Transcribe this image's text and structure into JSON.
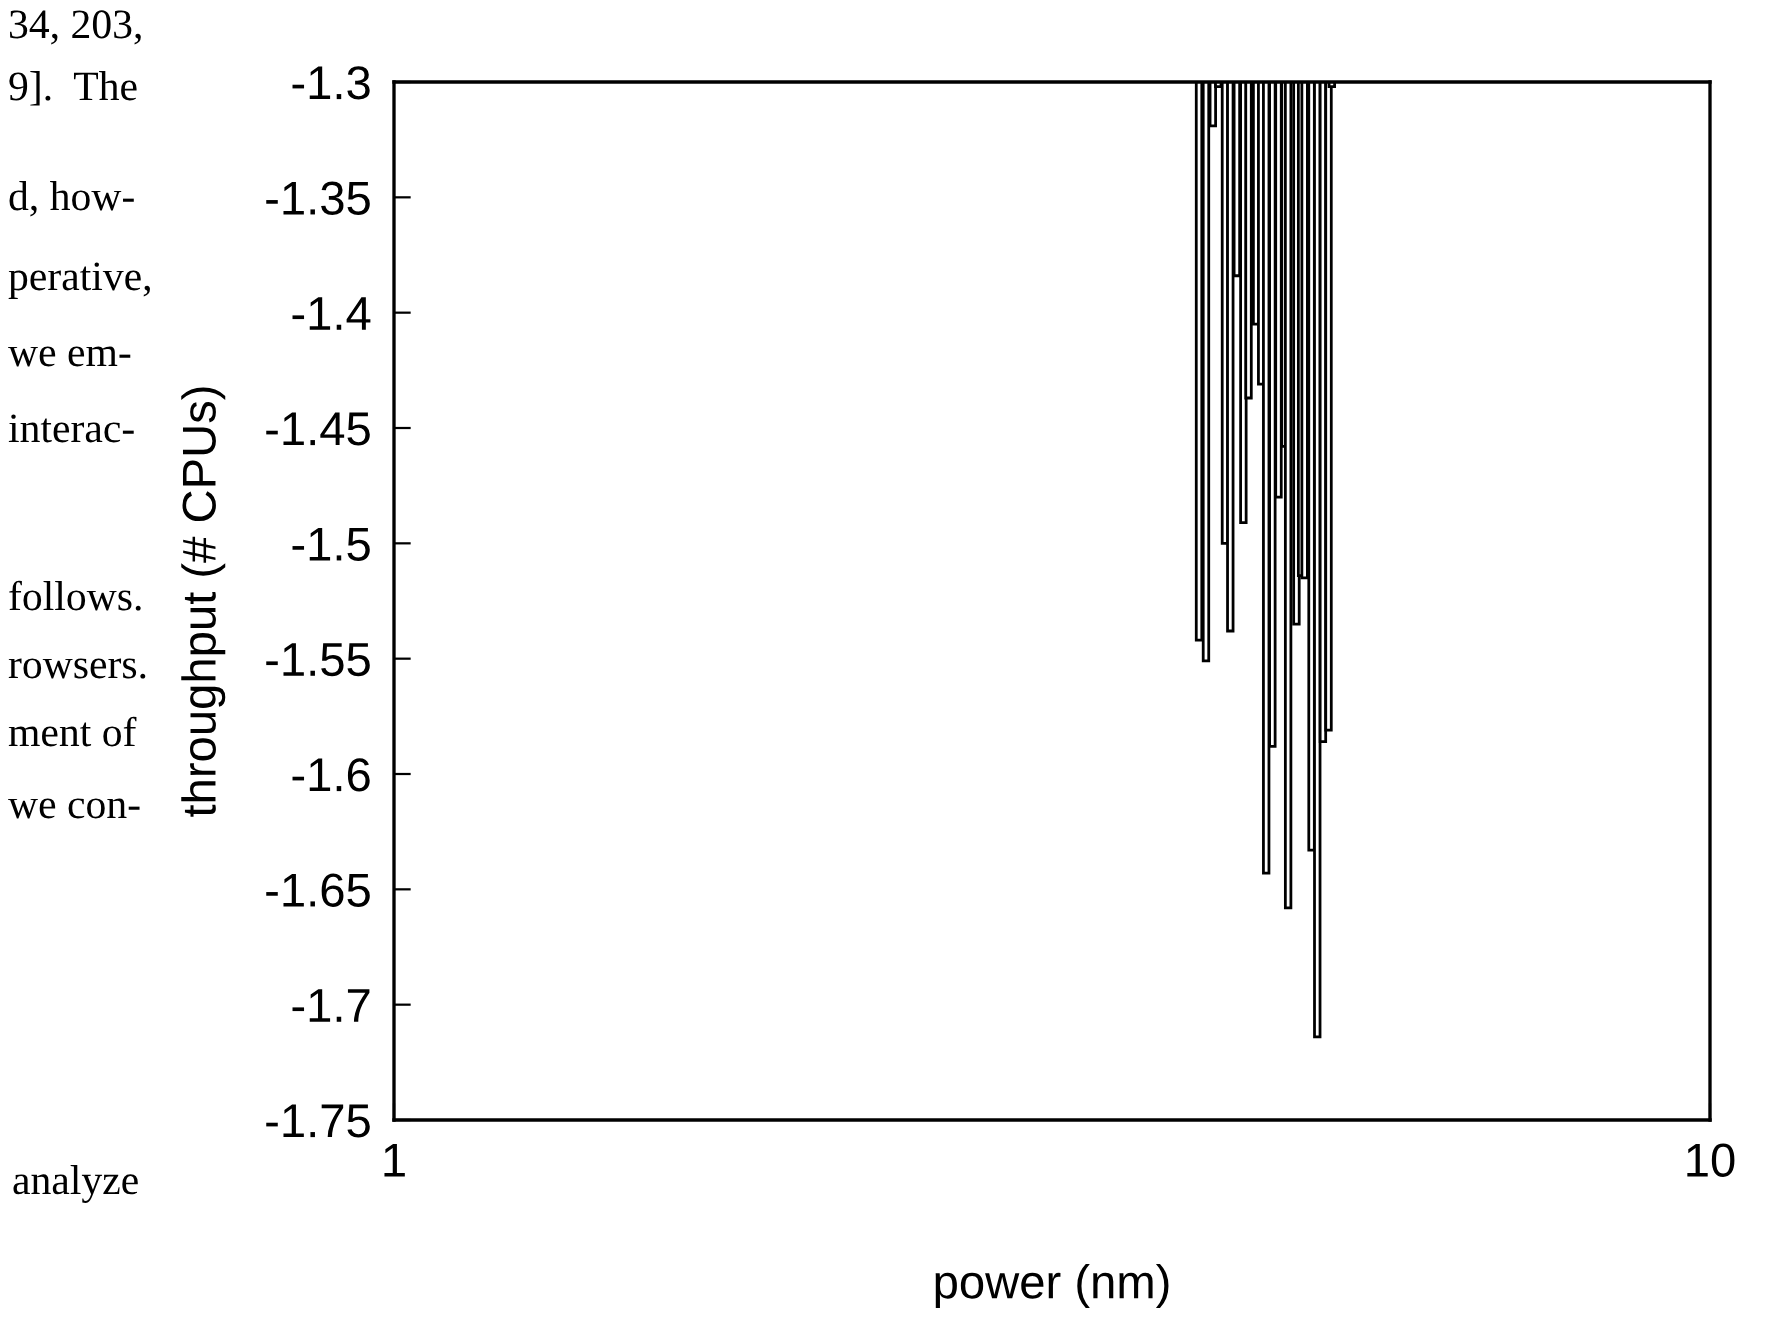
{
  "chart_data": {
    "type": "bar",
    "xlabel": "power (nm)",
    "ylabel": "throughput (# CPUs)",
    "x": [
      4.09,
      4.14,
      4.19,
      4.23,
      4.28,
      4.32,
      4.37,
      4.42,
      4.46,
      4.52,
      4.56,
      4.6,
      4.65,
      4.7,
      4.75,
      4.78,
      4.85,
      4.89,
      4.92,
      4.98,
      5.03,
      5.08,
      5.13,
      5.16
    ],
    "values": [
      -1.542,
      -1.551,
      -1.319,
      -1.302,
      -1.5,
      -1.538,
      -1.384,
      -1.491,
      -1.437,
      -1.405,
      -1.431,
      -1.643,
      -1.588,
      -1.48,
      -1.458,
      -1.658,
      -1.535,
      -1.514,
      -1.515,
      -1.633,
      -1.714,
      -1.586,
      -1.581,
      -1.302
    ],
    "color": "#ffffff",
    "log": "x",
    "xlim": [
      1,
      10
    ],
    "xticks": [
      1,
      10
    ],
    "ylim": [
      -1.75,
      -1.3
    ],
    "yticks": [
      -1.3,
      -1.35,
      -1.4,
      -1.45,
      -1.5,
      -1.55,
      -1.6,
      -1.65,
      -1.7,
      -1.75
    ],
    "grid": false,
    "annotations": [
      "34, 203,",
      "9].  The",
      "d, how-",
      "perative,",
      "we em-",
      "interac-",
      "follows.",
      "rowsers.",
      "ment of",
      "we con-",
      "analyze"
    ]
  }
}
